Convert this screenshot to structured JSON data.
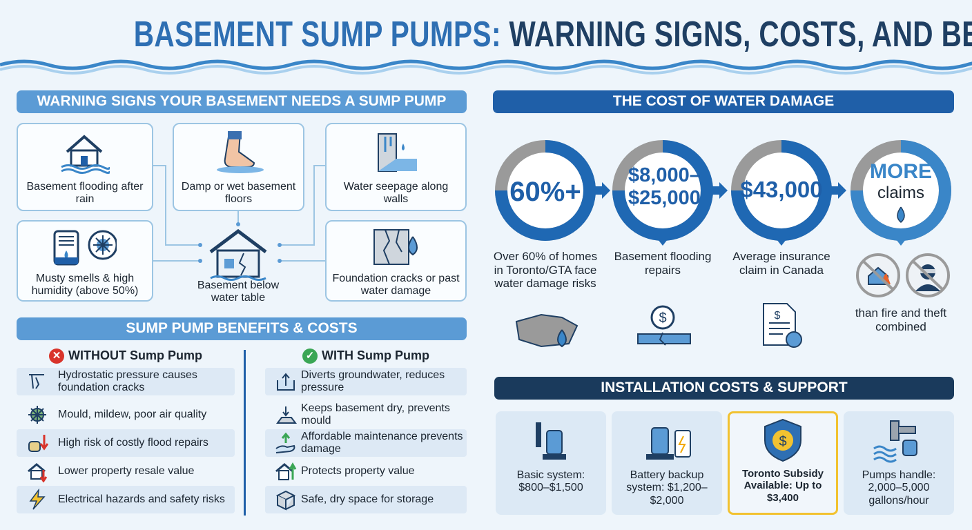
{
  "title": {
    "part1": "BASEMENT SUMP PUMPS:",
    "part2": "WARNING SIGNS, COSTS, AND BENEFITS"
  },
  "warning_signs": {
    "heading": "WARNING SIGNS YOUR BASEMENT NEEDS A SUMP PUMP",
    "items": [
      "Basement flooding after rain",
      "Damp or wet basement floors",
      "Water seepage along walls",
      "Musty smells & high humidity (above 50%)",
      "Foundation cracks or past water damage"
    ],
    "center": "Basement below water table"
  },
  "water_damage": {
    "heading": "THE COST OF WATER DAMAGE",
    "stats": [
      {
        "value": "60%+",
        "caption": "Over 60% of homes in Toronto/GTA face water damage risks"
      },
      {
        "value": "$8,000–$25,000",
        "caption": "Basement flooding repairs"
      },
      {
        "value": "$43,000",
        "caption": "Average insurance claim in Canada"
      },
      {
        "value": "MORE",
        "sub": "claims",
        "caption": "than fire and theft combined"
      }
    ]
  },
  "benefits": {
    "heading": "SUMP PUMP BENEFITS & COSTS",
    "without": {
      "title": "WITHOUT Sump Pump",
      "items": [
        "Hydrostatic pressure causes foundation cracks",
        "Mould, mildew, poor air quality",
        "High risk of costly flood repairs",
        "Lower property resale value",
        "Electrical hazards and safety risks"
      ]
    },
    "with": {
      "title": "WITH Sump Pump",
      "items": [
        "Diverts groundwater, reduces pressure",
        "Keeps basement dry, prevents mould",
        "Affordable maintenance prevents damage",
        "Protects property value",
        "Safe, dry space for storage"
      ]
    }
  },
  "installation": {
    "heading": "INSTALLATION COSTS & SUPPORT",
    "items": [
      "Basic system: $800–$1,500",
      "Battery backup system: $1,200–$2,000",
      "Toronto Subsidy Available: Up to $3,400",
      "Pumps handle: 2,000–5,000 gallons/hour"
    ]
  }
}
